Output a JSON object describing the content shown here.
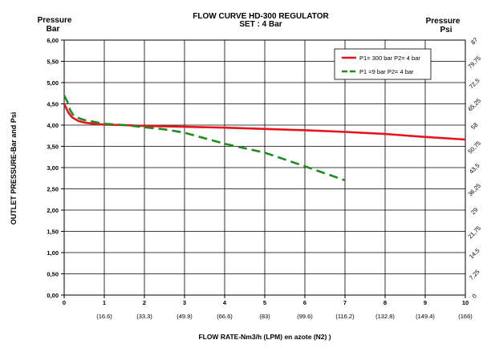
{
  "chart_data": {
    "type": "line",
    "title": "FLOW CURVE HD-300 REGULATOR",
    "subtitle": "SET : 4 Bar",
    "left_axis_header": [
      "Pressure",
      "Bar"
    ],
    "right_axis_header": [
      "Pressure",
      "Psi"
    ],
    "ylabel": "OUTLET PRESSURE-Bar and Psi",
    "xlabel": "FLOW RATE-Nm3/h (LPM)  en azote (N2) )",
    "xlim": [
      0,
      10
    ],
    "ylim": [
      0,
      6
    ],
    "x_ticks": [
      0,
      1,
      2,
      3,
      4,
      5,
      6,
      7,
      8,
      9,
      10
    ],
    "x_secondary_ticks": [
      {
        "x": 1,
        "label": "(16.6)"
      },
      {
        "x": 2,
        "label": "(33.3)"
      },
      {
        "x": 3,
        "label": "(49.9)"
      },
      {
        "x": 4,
        "label": "(66.6)"
      },
      {
        "x": 5,
        "label": "(83)"
      },
      {
        "x": 6,
        "label": "(99.6)"
      },
      {
        "x": 7,
        "label": "(116.2)"
      },
      {
        "x": 8,
        "label": "(132.8)"
      },
      {
        "x": 9,
        "label": "(149.4)"
      },
      {
        "x": 10,
        "label": "(166)"
      }
    ],
    "y_ticks": [
      "0,00",
      "0,50",
      "1,00",
      "1,50",
      "2,00",
      "2,50",
      "3,00",
      "3,50",
      "4,00",
      "4,50",
      "5,00",
      "5,50",
      "6,00"
    ],
    "y_tick_values": [
      0,
      0.5,
      1,
      1.5,
      2,
      2.5,
      3,
      3.5,
      4,
      4.5,
      5,
      5.5,
      6
    ],
    "y2_ticks": [
      {
        "y": 0,
        "label": "0"
      },
      {
        "y": 0.5,
        "label": "7,25"
      },
      {
        "y": 1.0,
        "label": "14,5"
      },
      {
        "y": 1.5,
        "label": "21,75"
      },
      {
        "y": 2.0,
        "label": "29"
      },
      {
        "y": 2.5,
        "label": "36,25"
      },
      {
        "y": 3.0,
        "label": "43,5"
      },
      {
        "y": 3.5,
        "label": "50,75"
      },
      {
        "y": 4.0,
        "label": "58"
      },
      {
        "y": 4.5,
        "label": "65,25"
      },
      {
        "y": 5.0,
        "label": "72,5"
      },
      {
        "y": 5.5,
        "label": "79,75"
      },
      {
        "y": 6.0,
        "label": "87"
      }
    ],
    "grid": true,
    "legend_position": "top-right",
    "series": [
      {
        "name": "P1= 300 bar  P2= 4 bar",
        "color": "#e8141b",
        "style": "solid",
        "x": [
          0,
          0.1,
          0.2,
          0.35,
          0.5,
          0.75,
          1,
          1.5,
          2,
          3,
          4,
          5,
          6,
          7,
          8,
          9,
          10
        ],
        "y": [
          4.5,
          4.3,
          4.18,
          4.1,
          4.06,
          4.03,
          4.01,
          4.0,
          3.98,
          3.96,
          3.94,
          3.91,
          3.88,
          3.84,
          3.79,
          3.72,
          3.66
        ]
      },
      {
        "name": "P1 =9 bar  P2= 4 bar",
        "color": "#1e8b1e",
        "style": "dashed",
        "x": [
          0,
          0.08,
          0.15,
          0.25,
          0.5,
          1,
          1.5,
          2,
          2.5,
          3,
          4,
          5,
          6,
          7
        ],
        "y": [
          4.7,
          4.55,
          4.35,
          4.2,
          4.12,
          4.03,
          4.0,
          3.95,
          3.9,
          3.82,
          3.56,
          3.35,
          3.03,
          2.7
        ]
      }
    ]
  }
}
